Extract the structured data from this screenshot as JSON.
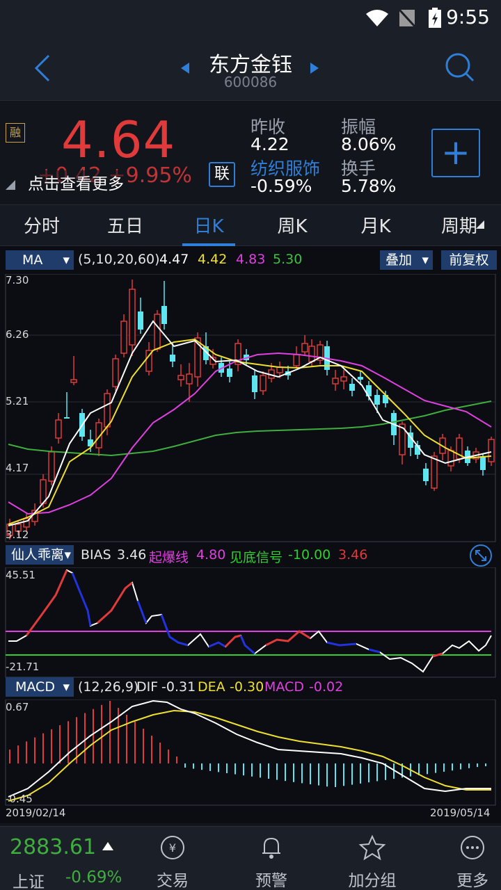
{
  "status": {
    "time": "9:55"
  },
  "header": {
    "name": "东方金钰",
    "code": "600086"
  },
  "quote": {
    "price": "4.64",
    "change_overlay": "+0.42 +9.95%",
    "hint": "点击查看更多",
    "rong_label": "融",
    "lian_label": "联",
    "prev_close_label": "昨收",
    "prev_close": "4.22",
    "sector_label": "纺织服饰",
    "sector_change": "-0.59%",
    "amplitude_label": "振幅",
    "amplitude": "8.06%",
    "turnover_label": "换手",
    "turnover": "5.78%",
    "add_symbol": "+"
  },
  "tabs": [
    "分时",
    "五日",
    "日K",
    "周K",
    "月K",
    "周期"
  ],
  "active_tab": "日K",
  "ma_bar": {
    "name": "MA",
    "params": "(5,10,20,60)",
    "v1": "4.47",
    "v2": "4.42",
    "v3": "4.83",
    "v4": "5.30",
    "overlay_btn": "叠加",
    "fq_btn": "前复权"
  },
  "price_axis": [
    "7.30",
    "6.26",
    "5.21",
    "4.17",
    "3.12"
  ],
  "bias_bar": {
    "name": "仙人乖离",
    "label": "BIAS",
    "bias": "3.46",
    "qbx_label": "起爆线",
    "qbx": "4.80",
    "jdx_label": "见底信号",
    "jdx": "-10.00",
    "val": "3.46",
    "top": "45.51",
    "bottom": "-21.71"
  },
  "macd_bar": {
    "name": "MACD",
    "params": "(12,26,9)",
    "dif_label": "DIF",
    "dif": "-0.31",
    "dea_label": "DEA",
    "dea": "-0.30",
    "macd_label": "MACD",
    "macd": "-0.02",
    "top": "0.67",
    "bottom": "-0.45"
  },
  "dates": {
    "start": "2019/02/14",
    "end": "2019/05/14"
  },
  "index": {
    "value": "2883.61",
    "name": "上证",
    "change": "-0.69%"
  },
  "bottom_nav": [
    "交易",
    "预警",
    "加分组",
    "更多"
  ],
  "colors": {
    "up": "#e03a3a",
    "down": "#5ee5f0",
    "accent": "#2f7fd9"
  }
}
